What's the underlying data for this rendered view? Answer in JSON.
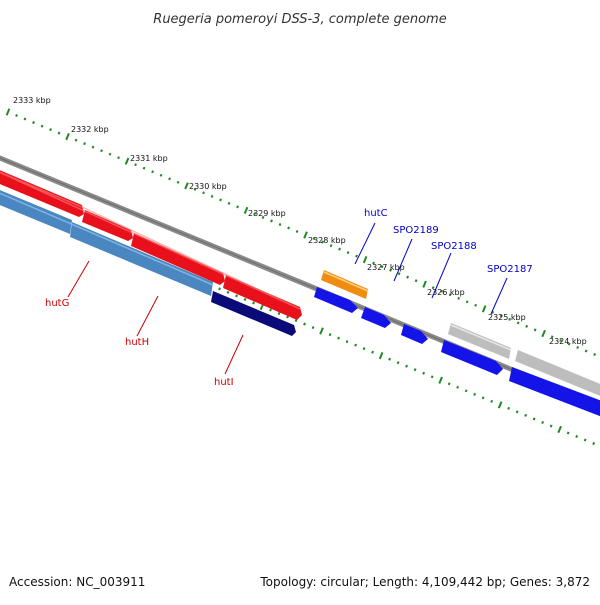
{
  "title": "Ruegeria pomeroyi DSS-3, complete genome",
  "footer": {
    "accession": "Accession: NC_003911",
    "summary": "Topology: circular; Length: 4,109,442 bp; Genes: 3,872"
  },
  "ruler": {
    "unit": "kbp",
    "ticks": [
      "2333 kbp",
      "2332 kbp",
      "2331 kbp",
      "2330 kbp",
      "2329 kbp",
      "2328 kbp",
      "2327 kbp",
      "2326 kbp",
      "2325 kbp",
      "2324 kbp"
    ]
  },
  "colors": {
    "backbone": "#7a7a7a",
    "ruler_tick": "#1e8a1e",
    "red_gene": "#e8101a",
    "blue_gene": "#1414e8",
    "steel_gene": "#4a86c0",
    "navy_gene": "#0a0a78",
    "orange_gene": "#f08c10",
    "gray_gene": "#bdbdbd",
    "label_red": "#cc0000",
    "label_blue": "#0000cc"
  },
  "genes": {
    "labeled": [
      {
        "name": "hutG",
        "color": "label_red"
      },
      {
        "name": "hutH",
        "color": "label_red"
      },
      {
        "name": "hutI",
        "color": "label_red"
      },
      {
        "name": "hutC",
        "color": "label_blue"
      },
      {
        "name": "SPO2189",
        "color": "label_blue"
      },
      {
        "name": "SPO2188",
        "color": "label_blue"
      },
      {
        "name": "SPO2187",
        "color": "label_blue"
      }
    ]
  }
}
